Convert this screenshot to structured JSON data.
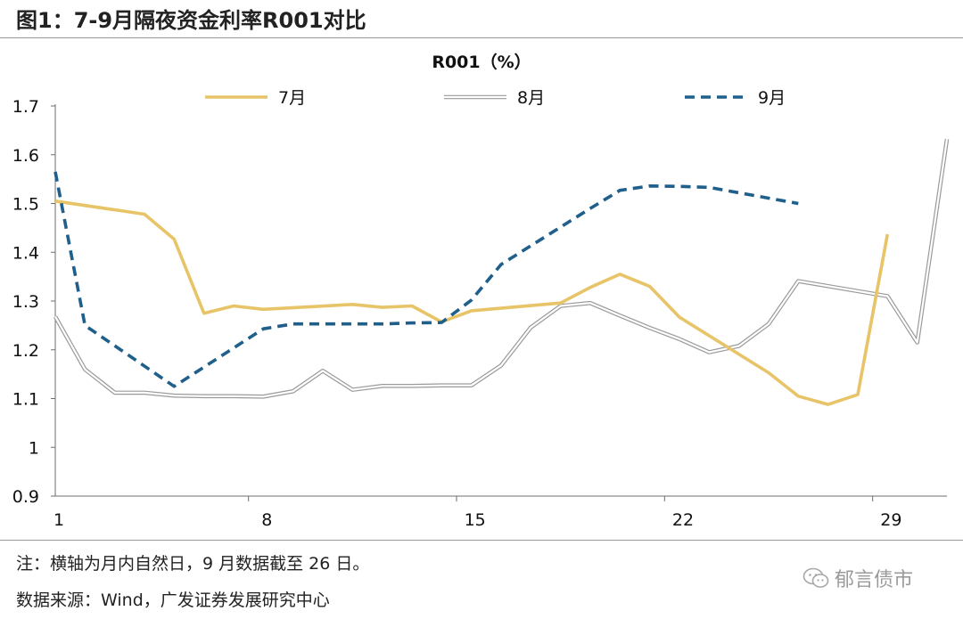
{
  "figure_title": "图1：7-9月隔夜资金利率R001对比",
  "note": "注：横轴为月内自然日，9 月数据截至 26 日。",
  "source": "数据来源：Wind，广发证券发展研究中心",
  "watermark": "郁言债市",
  "colors": {
    "july": "#E8C468",
    "august_outer": "#9a9a9a",
    "september": "#1F5F8B"
  },
  "chart_data": {
    "type": "line",
    "title": "R001（%）",
    "xlabel": "",
    "ylabel": "",
    "xlim": [
      1,
      31
    ],
    "ylim": [
      0.9,
      1.7
    ],
    "yticks": [
      0.9,
      1,
      1.1,
      1.2,
      1.3,
      1.4,
      1.5,
      1.6,
      1.7
    ],
    "ytick_labels": [
      "0.9",
      "1",
      "1.1",
      "1.2",
      "1.3",
      "1.4",
      "1.5",
      "1.6",
      "1.7"
    ],
    "xtick_labels": [
      {
        "day": 1,
        "label": "1"
      },
      {
        "day": 8,
        "label": "8"
      },
      {
        "day": 15,
        "label": "15"
      },
      {
        "day": 22,
        "label": "22"
      },
      {
        "day": 29,
        "label": "29"
      }
    ],
    "legend_position": "top",
    "series": [
      {
        "name": "7月",
        "style": "solid",
        "x": [
          1,
          4,
          5,
          6,
          7,
          8,
          11,
          12,
          13,
          14,
          15,
          18,
          19,
          20,
          21,
          22,
          25,
          26,
          27,
          28,
          29
        ],
        "values": [
          1.505,
          1.478,
          1.427,
          1.275,
          1.29,
          1.283,
          1.293,
          1.287,
          1.29,
          1.257,
          1.28,
          1.296,
          1.328,
          1.355,
          1.33,
          1.267,
          1.153,
          1.105,
          1.088,
          1.108,
          1.437
        ]
      },
      {
        "name": "8月",
        "style": "double",
        "x": [
          1,
          2,
          3,
          4,
          5,
          6,
          7,
          8,
          9,
          10,
          11,
          12,
          13,
          14,
          15,
          16,
          17,
          18,
          19,
          20,
          21,
          22,
          23,
          24,
          25,
          26,
          29,
          30,
          31
        ],
        "values": [
          1.268,
          1.16,
          1.112,
          1.112,
          1.106,
          1.105,
          1.105,
          1.104,
          1.115,
          1.157,
          1.118,
          1.126,
          1.126,
          1.127,
          1.127,
          1.168,
          1.246,
          1.29,
          1.296,
          1.27,
          1.245,
          1.222,
          1.195,
          1.208,
          1.253,
          1.341,
          1.31,
          1.215,
          1.632
        ]
      },
      {
        "name": "9月",
        "style": "dashed",
        "x": [
          1,
          2,
          5,
          8,
          9,
          12,
          13,
          14,
          15,
          16,
          19,
          20,
          21,
          22,
          23,
          26
        ],
        "values": [
          1.565,
          1.25,
          1.125,
          1.243,
          1.253,
          1.253,
          1.255,
          1.256,
          1.302,
          1.375,
          1.49,
          1.527,
          1.536,
          1.535,
          1.533,
          1.5
        ]
      }
    ]
  }
}
